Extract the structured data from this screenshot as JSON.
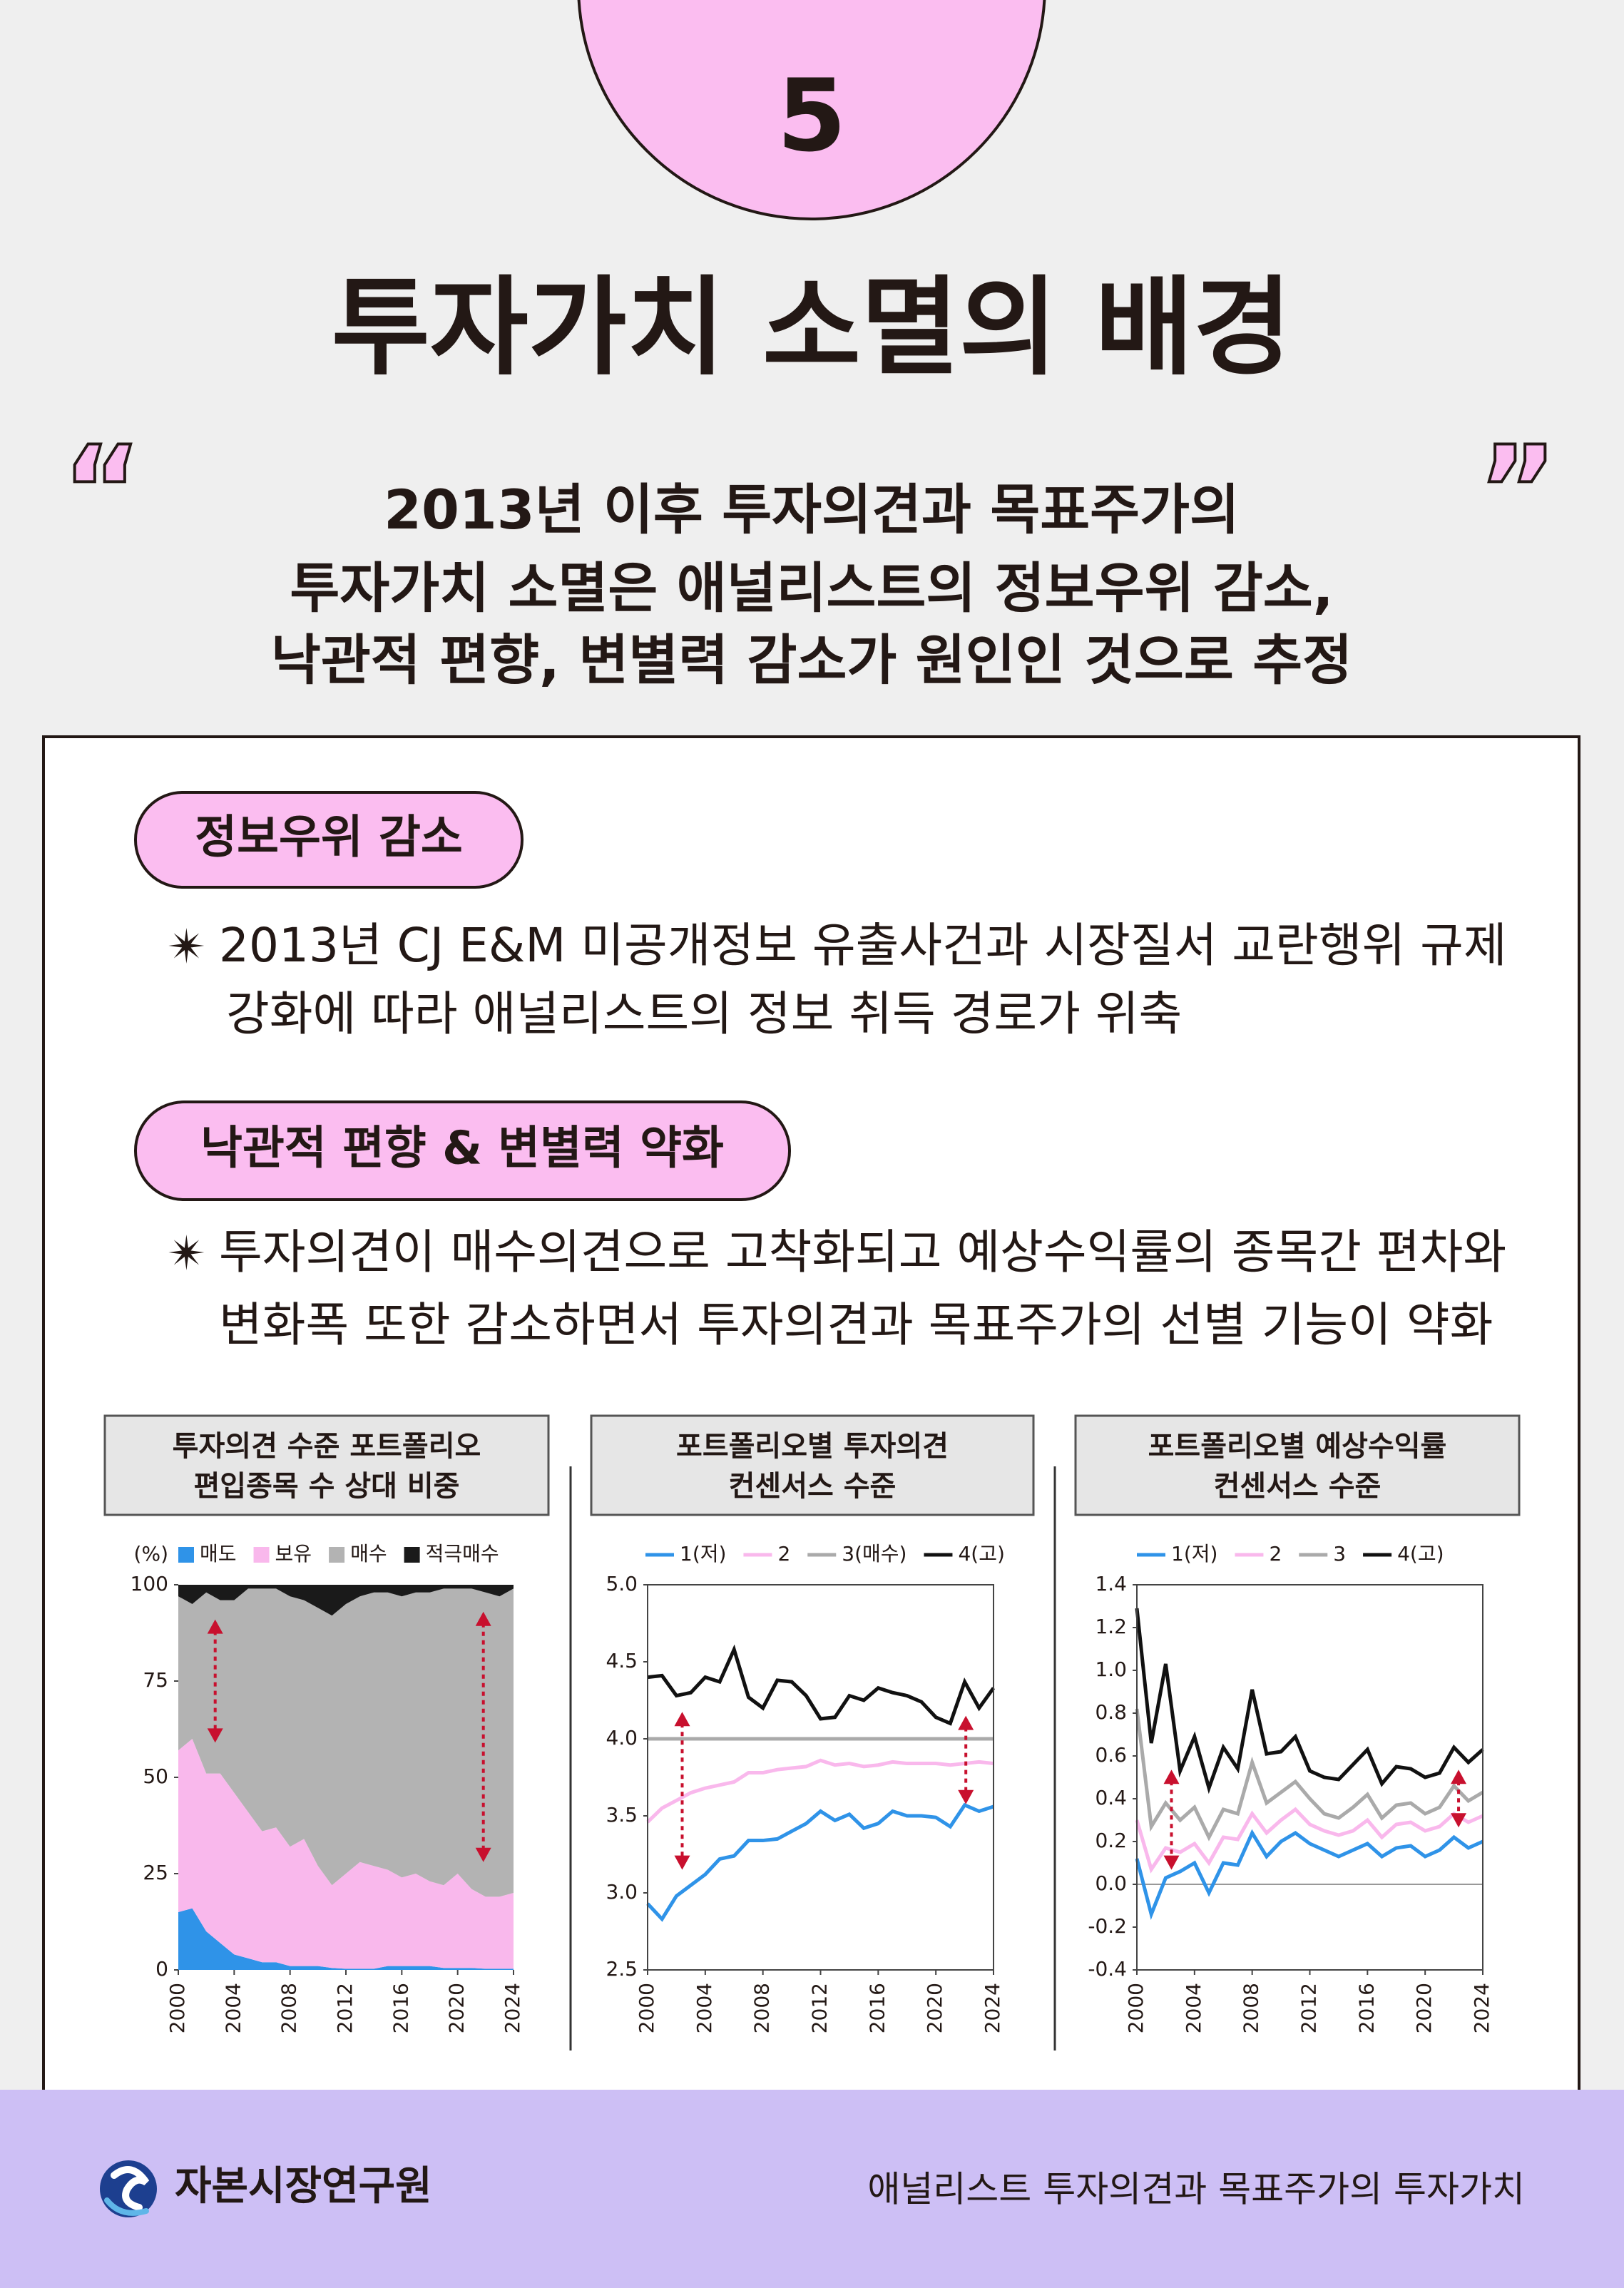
{
  "badge": "5",
  "title": "투자가치 소멸의 배경",
  "quote": {
    "open": "“",
    "close": "”",
    "lines": [
      "2013년 이후 투자의견과 목표주가의",
      "투자가치 소멸은 애널리스트의 정보우위 감소,",
      "낙관적 편향, 변별력 감소가 원인인 것으로 추정"
    ]
  },
  "sections": [
    {
      "label": "정보우위 감소",
      "bullet": "✴",
      "lines": [
        "2013년 CJ E&M 미공개정보 유출사건과 시장질서 교란행위 규제",
        "강화에 따라 애널리스트의 정보 취득 경로가 위축"
      ]
    },
    {
      "label": "낙관적 편향 & 변별력 약화",
      "bullet": "✴",
      "lines": [
        "투자의견이 매수의견으로 고착화되고 예상수익률의 종목간 편차와",
        "변화폭 또한 감소하면서 투자의견과 목표주가의 선별 기능이 약화"
      ]
    }
  ],
  "chart_data": [
    {
      "type": "stacked_area",
      "title": [
        "투자의견 수준 포트폴리오",
        "편입종목 수 상대 비중"
      ],
      "ylabel": "(%)",
      "x": [
        2000,
        2001,
        2002,
        2003,
        2004,
        2005,
        2006,
        2007,
        2008,
        2009,
        2010,
        2011,
        2012,
        2013,
        2014,
        2015,
        2016,
        2017,
        2018,
        2019,
        2020,
        2021,
        2022,
        2023,
        2024
      ],
      "xlim": [
        2000,
        2024
      ],
      "xticks": [
        2000,
        2004,
        2008,
        2012,
        2016,
        2020,
        2024
      ],
      "ylim": [
        0,
        100
      ],
      "yticks": [
        0,
        25,
        50,
        75,
        100
      ],
      "frame": false,
      "legend_marker": "square",
      "series": [
        {
          "name": "매도",
          "color": "#2f93e8",
          "values": [
            15,
            16,
            10,
            7,
            4,
            3,
            2,
            2,
            1,
            1,
            1,
            0.5,
            0.3,
            0.3,
            0.3,
            1,
            1,
            1,
            1,
            0.5,
            0.5,
            0.5,
            0.3,
            0.3,
            0.3
          ]
        },
        {
          "name": "보유",
          "color": "#f9b8ec",
          "values": [
            42,
            44,
            41,
            44,
            42,
            38,
            34,
            35,
            31,
            33,
            26,
            21.5,
            24.7,
            27.7,
            26.7,
            25,
            23,
            24,
            22,
            21.5,
            24.5,
            20.5,
            18.7,
            18.7,
            19.7
          ]
        },
        {
          "name": "매수",
          "color": "#b3b3b3",
          "values": [
            40,
            35,
            47,
            45,
            50,
            58,
            63,
            62,
            65,
            62,
            67,
            70,
            70,
            69,
            71,
            72,
            73,
            73,
            75,
            77,
            74,
            78,
            79,
            78,
            79
          ]
        },
        {
          "name": "적극매수",
          "color": "#1a1a1a",
          "values": [
            3,
            5,
            2,
            4,
            4,
            1,
            1,
            1,
            3,
            4,
            6,
            8,
            5,
            3,
            2,
            2,
            3,
            2,
            2,
            1,
            1,
            1,
            2,
            3,
            1
          ]
        }
      ]
    },
    {
      "type": "line",
      "title": [
        "포트폴리오별 투자의견",
        "컨센서스 수준"
      ],
      "x": [
        2000,
        2001,
        2002,
        2003,
        2004,
        2005,
        2006,
        2007,
        2008,
        2009,
        2010,
        2011,
        2012,
        2013,
        2014,
        2015,
        2016,
        2017,
        2018,
        2019,
        2020,
        2021,
        2022,
        2023,
        2024
      ],
      "xlim": [
        2000,
        2024
      ],
      "xticks": [
        2000,
        2004,
        2008,
        2012,
        2016,
        2020,
        2024
      ],
      "ylim": [
        2.5,
        5
      ],
      "yticks": [
        {
          "value": 2.5,
          "label": "2.5"
        },
        {
          "value": 3,
          "label": "3.0"
        },
        3.5,
        {
          "value": 4,
          "label": "4.0"
        },
        4.5,
        {
          "value": 5,
          "label": "5.0"
        }
      ],
      "frame": true,
      "legend_marker": "line",
      "series": [
        {
          "name": "1(저)",
          "color": "#2f93e8",
          "values": [
            2.93,
            2.83,
            2.98,
            3.05,
            3.12,
            3.22,
            3.24,
            3.34,
            3.34,
            3.35,
            3.4,
            3.45,
            3.53,
            3.47,
            3.51,
            3.42,
            3.45,
            3.53,
            3.5,
            3.5,
            3.49,
            3.43,
            3.57,
            3.53,
            3.56
          ]
        },
        {
          "name": "2",
          "color": "#f9b8ec",
          "values": [
            3.46,
            3.55,
            3.6,
            3.65,
            3.68,
            3.7,
            3.72,
            3.78,
            3.78,
            3.8,
            3.81,
            3.82,
            3.86,
            3.83,
            3.84,
            3.82,
            3.83,
            3.85,
            3.84,
            3.84,
            3.84,
            3.83,
            3.84,
            3.85,
            3.84
          ]
        },
        {
          "name": "3(매수)",
          "color": "#aaaaaa",
          "values": [
            4,
            4,
            4,
            4,
            4,
            4,
            4,
            4,
            4,
            4,
            4,
            4,
            4,
            4,
            4,
            4,
            4,
            4,
            4,
            4,
            4,
            4,
            4,
            4,
            4
          ]
        },
        {
          "name": "4(고)",
          "color": "#111111",
          "values": [
            4.4,
            4.41,
            4.28,
            4.3,
            4.4,
            4.37,
            4.58,
            4.27,
            4.2,
            4.38,
            4.37,
            4.28,
            4.13,
            4.14,
            4.28,
            4.25,
            4.33,
            4.3,
            4.28,
            4.24,
            4.14,
            4.1,
            4.37,
            4.2,
            4.33
          ]
        }
      ]
    },
    {
      "type": "line",
      "title": [
        "포트폴리오별 예상수익률",
        "컨센서스 수준"
      ],
      "x": [
        2000,
        2001,
        2002,
        2003,
        2004,
        2005,
        2006,
        2007,
        2008,
        2009,
        2010,
        2011,
        2012,
        2013,
        2014,
        2015,
        2016,
        2017,
        2018,
        2019,
        2020,
        2021,
        2022,
        2023,
        2024
      ],
      "xlim": [
        2000,
        2024
      ],
      "xticks": [
        2000,
        2004,
        2008,
        2012,
        2016,
        2020,
        2024
      ],
      "ylim": [
        -0.4,
        1.4
      ],
      "yticks": [
        -0.4,
        -0.2,
        {
          "value": 0,
          "label": "0.0"
        },
        0.2,
        0.4,
        0.6,
        0.8,
        {
          "value": 1,
          "label": "1.0"
        },
        1.2,
        1.4
      ],
      "frame": true,
      "zero_line": true,
      "legend_marker": "line",
      "series": [
        {
          "name": "1(저)",
          "color": "#2f93e8",
          "values": [
            0.12,
            -0.14,
            0.03,
            0.06,
            0.1,
            -0.04,
            0.1,
            0.09,
            0.24,
            0.13,
            0.2,
            0.24,
            0.19,
            0.16,
            0.13,
            0.16,
            0.19,
            0.13,
            0.17,
            0.18,
            0.13,
            0.16,
            0.22,
            0.17,
            0.2
          ]
        },
        {
          "name": "2",
          "color": "#f9b8ec",
          "values": [
            0.3,
            0.07,
            0.17,
            0.15,
            0.19,
            0.1,
            0.22,
            0.21,
            0.33,
            0.24,
            0.3,
            0.35,
            0.28,
            0.25,
            0.23,
            0.25,
            0.3,
            0.22,
            0.28,
            0.29,
            0.25,
            0.27,
            0.33,
            0.29,
            0.32
          ]
        },
        {
          "name": "3",
          "color": "#aaaaaa",
          "values": [
            0.82,
            0.27,
            0.38,
            0.3,
            0.36,
            0.22,
            0.35,
            0.33,
            0.57,
            0.38,
            0.43,
            0.48,
            0.4,
            0.33,
            0.31,
            0.36,
            0.42,
            0.31,
            0.37,
            0.38,
            0.33,
            0.36,
            0.46,
            0.39,
            0.43
          ]
        },
        {
          "name": "4(고)",
          "color": "#111111",
          "values": [
            1.29,
            0.66,
            1.03,
            0.53,
            0.69,
            0.45,
            0.64,
            0.54,
            0.91,
            0.61,
            0.62,
            0.69,
            0.53,
            0.5,
            0.49,
            0.56,
            0.63,
            0.47,
            0.55,
            0.54,
            0.5,
            0.52,
            0.64,
            0.57,
            0.63
          ]
        }
      ]
    }
  ],
  "footer": {
    "org": "자본시장연구원",
    "caption": "애널리스트 투자의견과 목표주가의 투자가치"
  }
}
